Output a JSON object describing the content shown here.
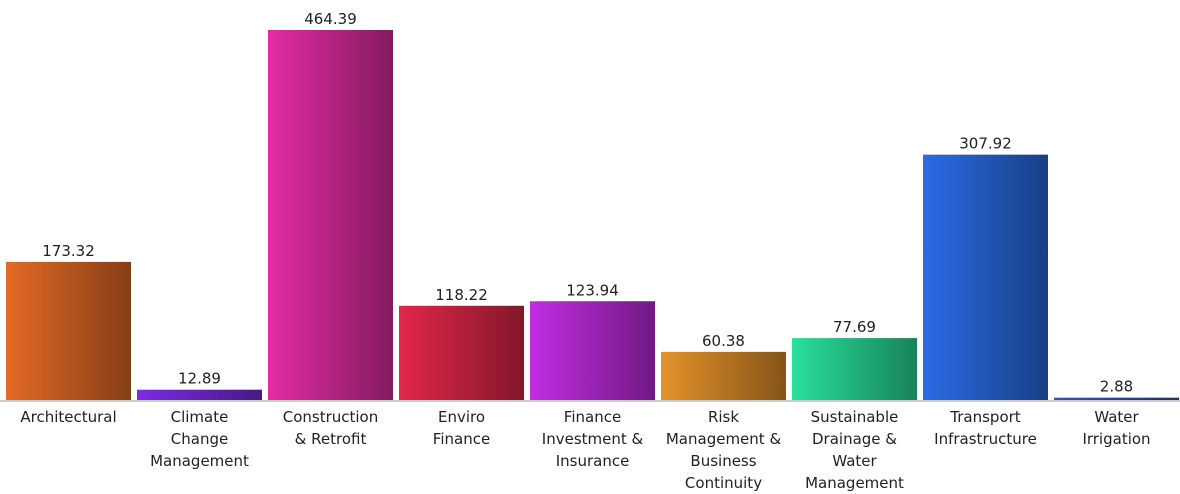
{
  "chart_data": {
    "type": "bar",
    "categories": [
      "Architectural",
      "Climate Change Management",
      "Construction & Retrofit",
      "Enviro Finance",
      "Finance Investment & Insurance",
      "Risk Management & Business Continuity",
      "Sustainable Drainage & Water Management",
      "Transport Infrastructure",
      "Water Irrigation"
    ],
    "values": [
      173.32,
      12.89,
      464.39,
      118.22,
      123.94,
      60.38,
      77.69,
      307.92,
      2.88
    ],
    "colors": [
      "#e56a25",
      "#7d2ae6",
      "#e22ca4",
      "#e2274a",
      "#c22de3",
      "#e4922a",
      "#29e09c",
      "#2a6ce6",
      "#3550c0"
    ]
  }
}
